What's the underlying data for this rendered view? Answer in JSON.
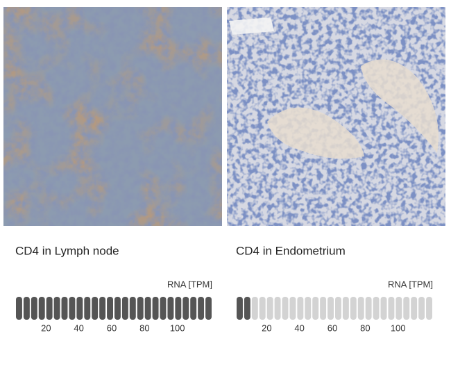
{
  "panels": [
    {
      "caption": "CD4 in Lymph node",
      "rna_label": "RNA [TPM]",
      "segments": 26,
      "filled_segments": 26,
      "xlim": [
        0,
        120
      ],
      "xticks": [
        20,
        40,
        60,
        80,
        100
      ]
    },
    {
      "caption": "CD4 in Endometrium",
      "rna_label": "RNA [TPM]",
      "segments": 26,
      "filled_segments": 2,
      "xlim": [
        0,
        120
      ],
      "xticks": [
        20,
        40,
        60,
        80,
        100
      ]
    }
  ]
}
